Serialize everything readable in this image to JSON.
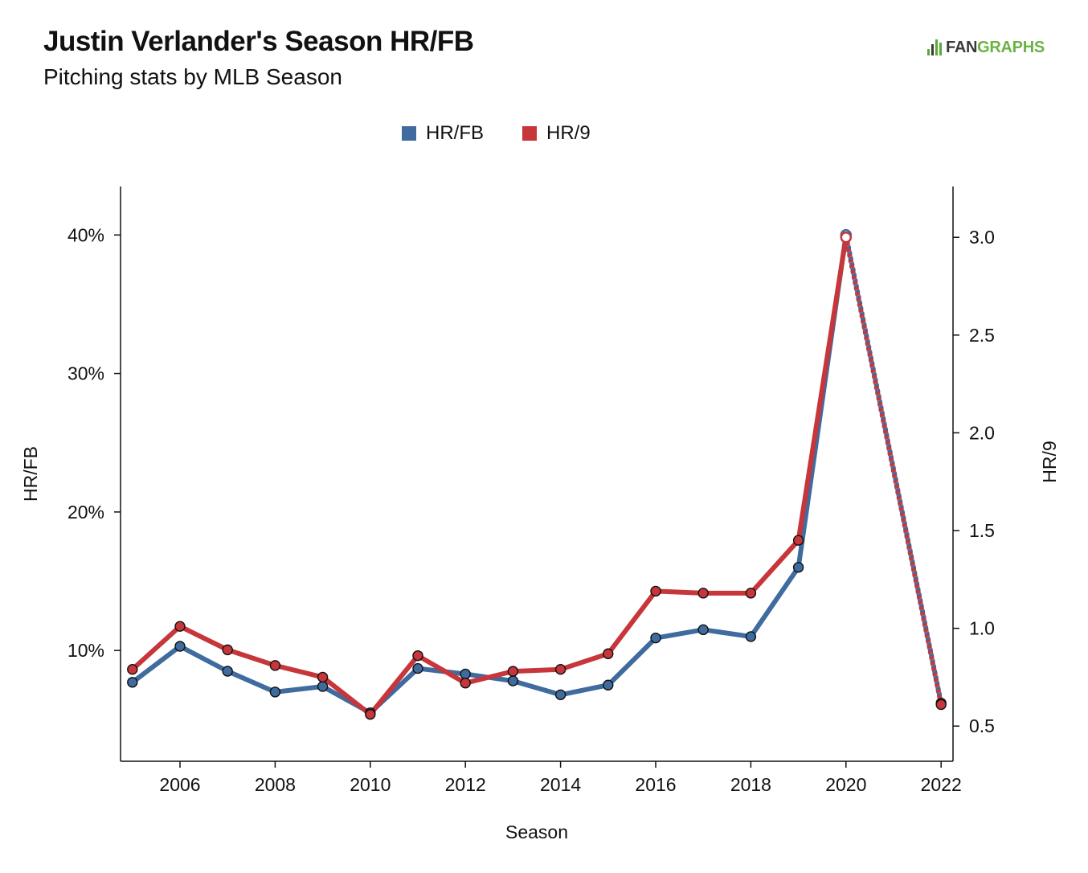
{
  "title": "Justin Verlander's Season HR/FB",
  "subtitle": "Pitching stats by MLB Season",
  "logo": {
    "fan": "FAN",
    "graphs": "GRAPHS"
  },
  "colors": {
    "hrfb": "#3f6b9e",
    "hr9": "#c6363a",
    "axis": "#111111"
  },
  "chart_data": {
    "type": "line",
    "title": "Justin Verlander's Season HR/FB",
    "subtitle": "Pitching stats by MLB Season",
    "xlabel": "Season",
    "ylabel_left": "HR/FB",
    "ylabel_right": "HR/9",
    "xlim": [
      2004.75,
      2022.25
    ],
    "x_ticks": [
      2006,
      2008,
      2010,
      2012,
      2014,
      2016,
      2018,
      2020,
      2022
    ],
    "y_left_lim": [
      0.02,
      0.435
    ],
    "y_left_ticks": [
      0.1,
      0.2,
      0.3,
      0.4
    ],
    "y_left_tick_labels": [
      "10%",
      "20%",
      "30%",
      "40%"
    ],
    "y_right_lim": [
      0.32,
      3.26
    ],
    "y_right_ticks": [
      0.5,
      1.0,
      1.5,
      2.0,
      2.5,
      3.0
    ],
    "y_right_tick_labels": [
      "0.5",
      "1.0",
      "1.5",
      "2.0",
      "2.5",
      "3.0"
    ],
    "legend_position": "top-center",
    "grid": false,
    "series": [
      {
        "name": "HR/FB",
        "axis": "left",
        "x": [
          2005,
          2006,
          2007,
          2008,
          2009,
          2010,
          2011,
          2012,
          2013,
          2014,
          2015,
          2016,
          2017,
          2018,
          2019,
          2020,
          2022
        ],
        "values": [
          0.077,
          0.103,
          0.085,
          0.07,
          0.074,
          0.055,
          0.087,
          0.083,
          0.078,
          0.068,
          0.075,
          0.109,
          0.115,
          0.11,
          0.16,
          0.4,
          0.062
        ]
      },
      {
        "name": "HR/9",
        "axis": "right",
        "x": [
          2005,
          2006,
          2007,
          2008,
          2009,
          2010,
          2011,
          2012,
          2013,
          2014,
          2015,
          2016,
          2017,
          2018,
          2019,
          2020,
          2022
        ],
        "values": [
          0.79,
          1.01,
          0.89,
          0.81,
          0.75,
          0.56,
          0.86,
          0.72,
          0.78,
          0.79,
          0.87,
          1.19,
          1.18,
          1.18,
          1.45,
          3.0,
          0.61
        ]
      }
    ]
  }
}
